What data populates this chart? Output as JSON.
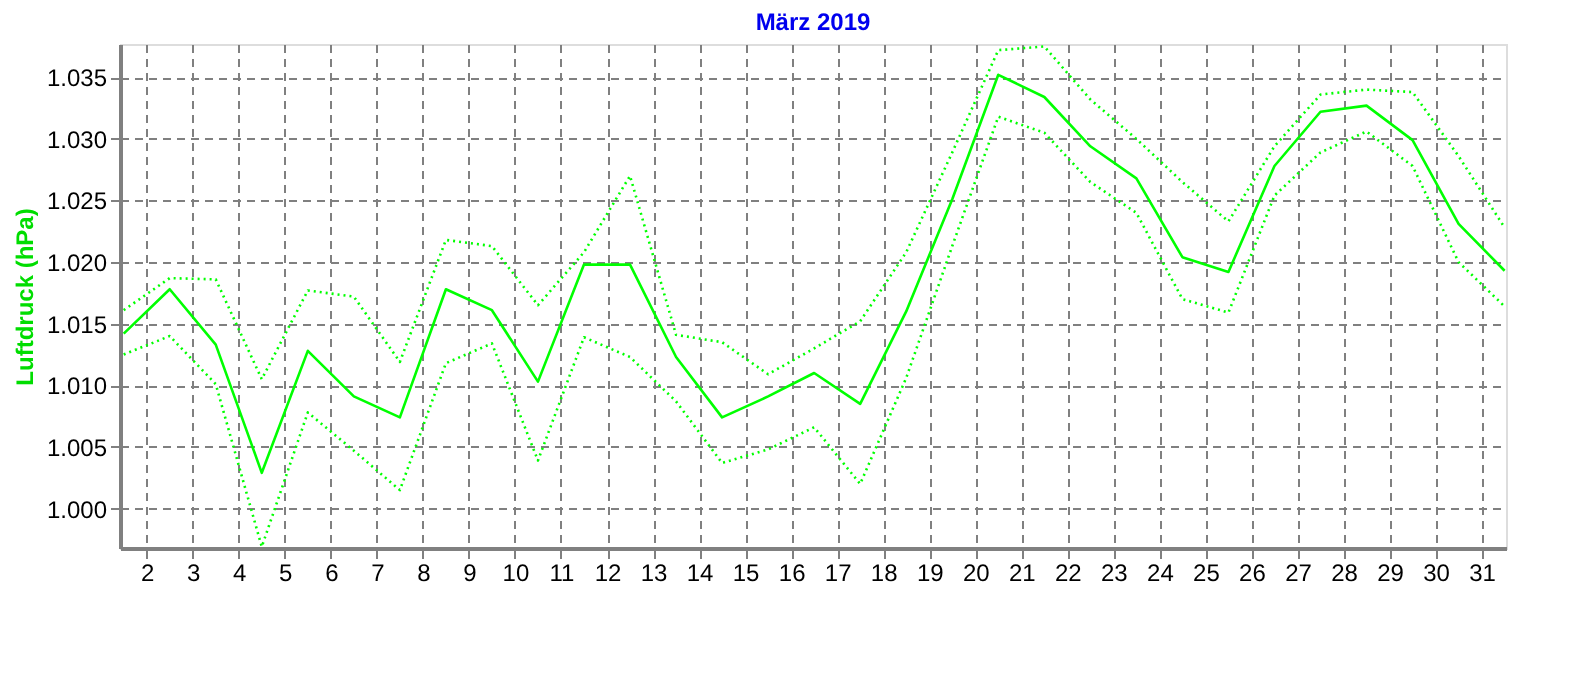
{
  "chart_data": {
    "type": "line",
    "title": "März 2019",
    "ylabel": "Luftdruck (hPa)",
    "x": [
      1.5,
      2.5,
      3.5,
      4.5,
      5.5,
      6.5,
      7.5,
      8.5,
      9.5,
      10.5,
      11.5,
      12.5,
      13.5,
      14.5,
      15.5,
      16.5,
      17.5,
      18.5,
      19.5,
      20.5,
      21.5,
      22.5,
      23.5,
      24.5,
      25.5,
      26.5,
      27.5,
      28.5,
      29.5,
      30.5,
      31.5
    ],
    "series": [
      {
        "color": "#00ff00",
        "line_style": "solid",
        "values": [
          1.0142,
          1.0178,
          1.0133,
          1.0029,
          1.0128,
          1.0091,
          1.0074,
          1.0178,
          1.0161,
          1.0103,
          1.0198,
          1.0198,
          1.0123,
          1.0074,
          1.0091,
          1.011,
          1.0085,
          1.016,
          1.0251,
          1.0352,
          1.0334,
          1.0294,
          1.0268,
          1.0204,
          1.0192,
          1.0278,
          1.0322,
          1.0327,
          1.0299,
          1.0231,
          1.0193
        ]
      },
      {
        "color": "#00ff00",
        "line_style": "dotted",
        "values": [
          1.0161,
          1.0187,
          1.0186,
          1.0105,
          1.0177,
          1.0172,
          1.0119,
          1.0218,
          1.0213,
          1.0165,
          1.0208,
          1.027,
          1.0141,
          1.0135,
          1.0109,
          1.013,
          1.0152,
          1.0208,
          1.0289,
          1.0372,
          1.0375,
          1.0332,
          1.03,
          1.0265,
          1.0233,
          1.0294,
          1.0336,
          1.034,
          1.0338,
          1.0286,
          1.0228
        ]
      },
      {
        "color": "#00ff00",
        "line_style": "dotted",
        "values": [
          1.0125,
          1.014,
          1.0101,
          0.9969,
          1.0078,
          1.0047,
          1.0015,
          1.0118,
          1.0134,
          1.0039,
          1.0139,
          1.0123,
          1.0087,
          1.0037,
          1.0048,
          1.0066,
          1.002,
          1.0106,
          1.0213,
          1.0318,
          1.0305,
          1.0265,
          1.024,
          1.017,
          1.0159,
          1.0254,
          1.0289,
          1.0306,
          1.0278,
          1.02,
          1.0164
        ]
      }
    ],
    "xlim": [
      1.42,
      31.53
    ],
    "xticks": [
      2,
      3,
      4,
      5,
      6,
      7,
      8,
      9,
      10,
      11,
      12,
      13,
      14,
      15,
      16,
      17,
      18,
      19,
      20,
      21,
      22,
      23,
      24,
      25,
      26,
      27,
      28,
      29,
      30,
      31
    ],
    "ylim": [
      0.9968,
      1.0377
    ],
    "yticks": [
      {
        "value": 1.0,
        "label": "1.000"
      },
      1.005,
      {
        "value": 1.01,
        "label": "1.010"
      },
      1.015,
      {
        "value": 1.02,
        "label": "1.020"
      },
      1.025,
      {
        "value": 1.03,
        "label": "1.030"
      },
      1.035
    ],
    "grid": true,
    "legend": false,
    "marker": "none"
  }
}
